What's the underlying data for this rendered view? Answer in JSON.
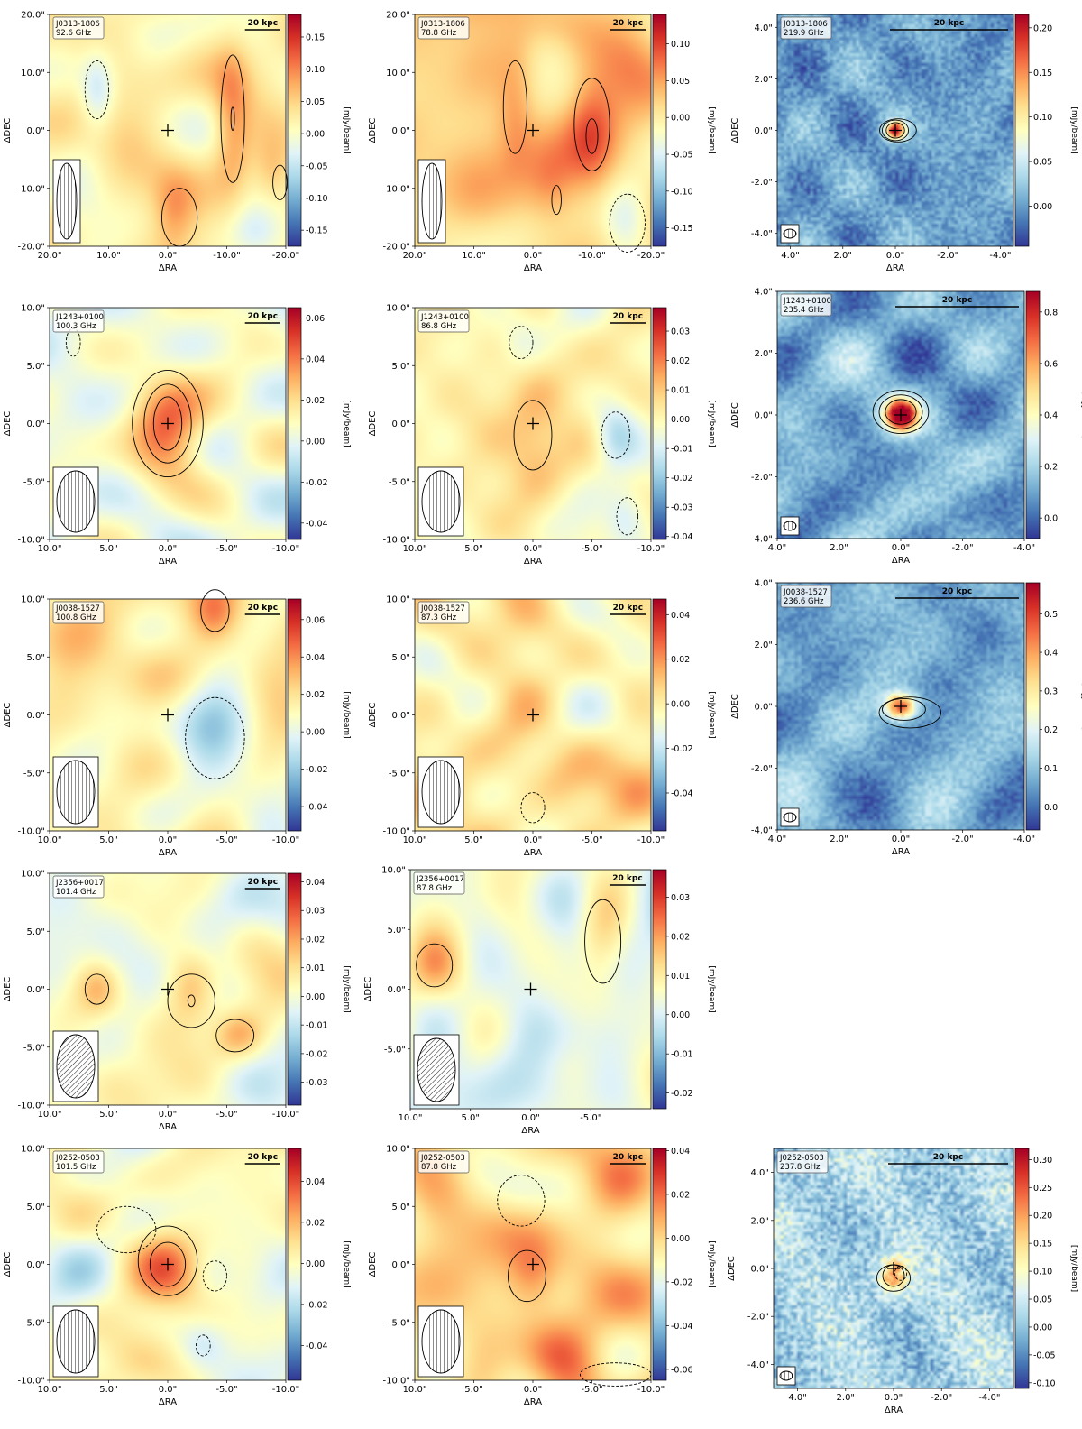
{
  "colors": {
    "cmap": [
      "#313695",
      "#4575b4",
      "#74add1",
      "#abd9e9",
      "#e0f3f8",
      "#ffffbf",
      "#fee090",
      "#fdae61",
      "#f46d43",
      "#d73027",
      "#a50026"
    ],
    "contour": "#000000",
    "axes": "#000000",
    "background": "#ffffff"
  },
  "scale_bar_label": "20 kpc",
  "colorbar_label": "[mJy/beam]",
  "xlabel": "ΔRA",
  "ylabel": "ΔDEC",
  "chart_data": [
    {
      "type": "heatmap",
      "source": "J0313-1806",
      "freq": "92.6 GHz",
      "xlim": [
        20,
        -20
      ],
      "ylim": [
        -20,
        20
      ],
      "xticks": [
        "20.0\"",
        "10.0\"",
        "0.0\"",
        "-10.0\"",
        "-20.0\""
      ],
      "yticks": [
        "20.0\"",
        "10.0\"",
        "0.0\"",
        "-10.0\"",
        "-20.0\""
      ],
      "cbar_range": [
        -0.175,
        0.185
      ],
      "cbar_ticks": [
        "0.15",
        "0.10",
        "0.05",
        "0.00",
        "-0.05",
        "-0.10",
        "-0.15"
      ],
      "beam": "hatched ellipse"
    },
    {
      "type": "heatmap",
      "source": "J0313-1806",
      "freq": "78.8 GHz",
      "xlim": [
        20,
        -20
      ],
      "ylim": [
        -20,
        20
      ],
      "xticks": [
        "20.0\"",
        "10.0\"",
        "0.0\"",
        "-10.0\"",
        "-20.0\""
      ],
      "yticks": [
        "20.0\"",
        "10.0\"",
        "0.0\"",
        "-10.0\"",
        "-20.0\""
      ],
      "cbar_range": [
        -0.175,
        0.14
      ],
      "cbar_ticks": [
        "0.10",
        "0.05",
        "0.00",
        "-0.05",
        "-0.10",
        "-0.15"
      ],
      "beam": "hatched ellipse"
    },
    {
      "type": "heatmap",
      "source": "J0313-1806",
      "freq": "219.9 GHz",
      "xlim": [
        4.5,
        -4.5
      ],
      "ylim": [
        -4.5,
        4.5
      ],
      "xticks": [
        "4.0\"",
        "2.0\"",
        "0.0\"",
        "-2.0\"",
        "-4.0\""
      ],
      "yticks": [
        "4.0\"",
        "2.0\"",
        "0.0\"",
        "-2.0\"",
        "-4.0\""
      ],
      "cbar_range": [
        -0.045,
        0.215
      ],
      "cbar_ticks": [
        "0.20",
        "0.15",
        "0.10",
        "0.05",
        "0.00"
      ],
      "beam": "hatched ellipse"
    },
    {
      "type": "heatmap",
      "source": "J1243+0100",
      "freq": "100.3 GHz",
      "xlim": [
        10,
        -10
      ],
      "ylim": [
        -10,
        10
      ],
      "xticks": [
        "10.0\"",
        "5.0\"",
        "0.0\"",
        "-5.0\"",
        "-10.0\""
      ],
      "yticks": [
        "10.0\"",
        "5.0\"",
        "0.0\"",
        "-5.0\"",
        "-10.0\""
      ],
      "cbar_range": [
        -0.048,
        0.065
      ],
      "cbar_ticks": [
        "0.06",
        "0.04",
        "0.02",
        "0.00",
        "-0.02",
        "-0.04"
      ],
      "beam": "hatched ellipse"
    },
    {
      "type": "heatmap",
      "source": "J1243+0100",
      "freq": "86.8 GHz",
      "xlim": [
        10,
        -10
      ],
      "ylim": [
        -10,
        10
      ],
      "xticks": [
        "10.0\"",
        "5.0\"",
        "0.0\"",
        "-5.0\"",
        "-10.0\""
      ],
      "yticks": [
        "10.0\"",
        "5.0\"",
        "0.0\"",
        "-5.0\"",
        "-10.0\""
      ],
      "cbar_range": [
        -0.041,
        0.038
      ],
      "cbar_ticks": [
        "0.03",
        "0.02",
        "0.01",
        "0.00",
        "-0.01",
        "-0.02",
        "-0.03",
        "-0.04"
      ],
      "beam": "hatched ellipse"
    },
    {
      "type": "heatmap",
      "source": "J1243+0100",
      "freq": "235.4 GHz",
      "xlim": [
        4,
        -4
      ],
      "ylim": [
        -4,
        4
      ],
      "xticks": [
        "4.0\"",
        "2.0\"",
        "0.0\"",
        "-2.0\"",
        "-4.0\""
      ],
      "yticks": [
        "4.0\"",
        "2.0\"",
        "0.0\"",
        "-2.0\"",
        "-4.0\""
      ],
      "cbar_range": [
        -0.08,
        0.88
      ],
      "cbar_ticks": [
        "0.8",
        "0.6",
        "0.4",
        "0.2",
        "0.0"
      ],
      "beam": "hatched ellipse"
    },
    {
      "type": "heatmap",
      "source": "J0038-1527",
      "freq": "100.8 GHz",
      "xlim": [
        10,
        -10
      ],
      "ylim": [
        -10,
        10
      ],
      "xticks": [
        "10.0\"",
        "5.0\"",
        "0.0\"",
        "-5.0\"",
        "-10.0\""
      ],
      "yticks": [
        "10.0\"",
        "5.0\"",
        "0.0\"",
        "-5.0\"",
        "-10.0\""
      ],
      "cbar_range": [
        -0.053,
        0.071
      ],
      "cbar_ticks": [
        "0.06",
        "0.04",
        "0.02",
        "0.00",
        "-0.02",
        "-0.04"
      ],
      "beam": "hatched ellipse"
    },
    {
      "type": "heatmap",
      "source": "J0038-1527",
      "freq": "87.3 GHz",
      "xlim": [
        10,
        -10
      ],
      "ylim": [
        -10,
        10
      ],
      "xticks": [
        "10.0\"",
        "5.0\"",
        "0.0\"",
        "-5.0\"",
        "-10.0\""
      ],
      "yticks": [
        "10.0\"",
        "5.0\"",
        "0.0\"",
        "-5.0\"",
        "-10.0\""
      ],
      "cbar_range": [
        -0.057,
        0.047
      ],
      "cbar_ticks": [
        "0.04",
        "0.02",
        "0.00",
        "-0.02",
        "-0.04"
      ],
      "beam": "hatched ellipse"
    },
    {
      "type": "heatmap",
      "source": "J0038-1527",
      "freq": "236.6 GHz",
      "xlim": [
        4,
        -4
      ],
      "ylim": [
        -4,
        4
      ],
      "xticks": [
        "4.0\"",
        "2.0\"",
        "0.0\"",
        "-2.0\"",
        "-4.0\""
      ],
      "yticks": [
        "4.0\"",
        "2.0\"",
        "0.0\"",
        "-2.0\"",
        "-4.0\""
      ],
      "cbar_range": [
        -0.06,
        0.58
      ],
      "cbar_ticks": [
        "0.5",
        "0.4",
        "0.3",
        "0.2",
        "0.1",
        "0.0"
      ],
      "beam": "hatched ellipse"
    },
    {
      "type": "heatmap",
      "source": "J2356+0017",
      "freq": "101.4 GHz",
      "xlim": [
        10,
        -10
      ],
      "ylim": [
        -10,
        10
      ],
      "xticks": [
        "10.0\"",
        "5.0\"",
        "0.0\"",
        "-5.0\"",
        "-10.0\""
      ],
      "yticks": [
        "10.0\"",
        "5.0\"",
        "0.0\"",
        "-5.0\"",
        "-10.0\""
      ],
      "cbar_range": [
        -0.038,
        0.043
      ],
      "cbar_ticks": [
        "0.04",
        "0.03",
        "0.02",
        "0.01",
        "0.00",
        "-0.01",
        "-0.02",
        "-0.03"
      ],
      "beam": "hatched ellipse"
    },
    {
      "type": "heatmap",
      "source": "J2356+0017",
      "freq": "87.8 GHz",
      "xlim": [
        10,
        -10
      ],
      "ylim": [
        -10,
        10
      ],
      "xticks": [
        "10.0\"",
        "5.0\"",
        "0.0\"",
        "-5.0\""
      ],
      "yticks": [
        "10.0\"",
        "5.0\"",
        "0.0\"",
        "-5.0\""
      ],
      "cbar_range": [
        -0.024,
        0.037
      ],
      "cbar_ticks": [
        "0.03",
        "0.02",
        "0.01",
        "0.00",
        "-0.01",
        "-0.02"
      ],
      "beam": "hatched ellipse"
    },
    {
      "type": "heatmap",
      "source": "J0252-0503",
      "freq": "101.5 GHz",
      "xlim": [
        10,
        -10
      ],
      "ylim": [
        -10,
        10
      ],
      "xticks": [
        "10.0\"",
        "5.0\"",
        "0.0\"",
        "-5.0\"",
        "-10.0\""
      ],
      "yticks": [
        "10.0\"",
        "5.0\"",
        "0.0\"",
        "-5.0\"",
        "-10.0\""
      ],
      "cbar_range": [
        -0.057,
        0.056
      ],
      "cbar_ticks": [
        "0.04",
        "0.02",
        "0.00",
        "-0.02",
        "-0.04"
      ],
      "beam": "hatched ellipse"
    },
    {
      "type": "heatmap",
      "source": "J0252-0503",
      "freq": "87.8 GHz",
      "xlim": [
        10,
        -10
      ],
      "ylim": [
        -10,
        10
      ],
      "xticks": [
        "10.0\"",
        "5.0\"",
        "0.0\"",
        "-5.0\"",
        "-10.0\""
      ],
      "yticks": [
        "10.0\"",
        "5.0\"",
        "0.0\"",
        "-5.0\"",
        "-10.0\""
      ],
      "cbar_range": [
        -0.065,
        0.041
      ],
      "cbar_ticks": [
        "0.04",
        "0.02",
        "0.00",
        "-0.02",
        "-0.04",
        "-0.06"
      ],
      "beam": "hatched ellipse"
    },
    {
      "type": "heatmap",
      "source": "J0252-0503",
      "freq": "237.8 GHz",
      "xlim": [
        5,
        -5
      ],
      "ylim": [
        -5,
        5
      ],
      "xticks": [
        "4.0\"",
        "2.0\"",
        "0.0\"",
        "-2.0\"",
        "-4.0\""
      ],
      "yticks": [
        "4.0\"",
        "2.0\"",
        "0.0\"",
        "-2.0\"",
        "-4.0\""
      ],
      "cbar_range": [
        -0.11,
        0.32
      ],
      "cbar_ticks": [
        "0.30",
        "0.25",
        "0.20",
        "0.15",
        "0.10",
        "0.05",
        "0.00",
        "-0.05",
        "-0.10"
      ],
      "beam": "hatched ellipse"
    }
  ]
}
